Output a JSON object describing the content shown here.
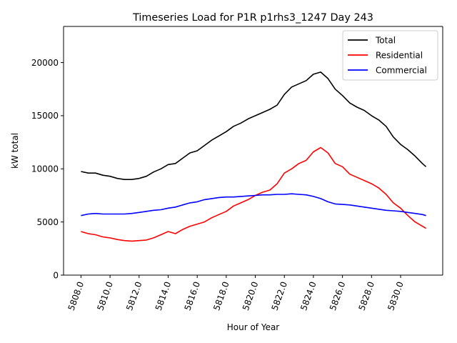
{
  "chart_data": {
    "type": "line",
    "title": "Timeseries Load for P1R p1rhs3_1247  Day 243",
    "xlabel": "Hour of Year",
    "ylabel": "kW total",
    "xlim": [
      5806.8,
      5832.9
    ],
    "ylim": [
      0,
      23400
    ],
    "x_ticks": [
      5808,
      5810,
      5812,
      5814,
      5816,
      5818,
      5820,
      5822,
      5824,
      5826,
      5828,
      5830
    ],
    "x_tick_labels": [
      "5808.0",
      "5810.0",
      "5812.0",
      "5814.0",
      "5816.0",
      "5818.0",
      "5820.0",
      "5822.0",
      "5824.0",
      "5826.0",
      "5828.0",
      "5830.0"
    ],
    "y_ticks": [
      0,
      5000,
      10000,
      15000,
      20000
    ],
    "y_tick_labels": [
      "0",
      "5000",
      "10000",
      "15000",
      "20000"
    ],
    "legend_position": "top-right",
    "x": [
      5808,
      5808.5,
      5809,
      5809.5,
      5810,
      5810.5,
      5811,
      5811.5,
      5812,
      5812.5,
      5813,
      5813.5,
      5814,
      5814.5,
      5815,
      5815.5,
      5816,
      5816.5,
      5817,
      5817.5,
      5818,
      5818.5,
      5819,
      5819.5,
      5820,
      5820.5,
      5821,
      5821.5,
      5822,
      5822.5,
      5823,
      5823.5,
      5824,
      5824.5,
      5825,
      5825.5,
      5826,
      5826.5,
      5827,
      5827.5,
      5828,
      5828.5,
      5829,
      5829.5,
      5830,
      5830.5,
      5831,
      5831.5,
      5831.75
    ],
    "series": [
      {
        "name": "Total",
        "color": "#000000",
        "values": [
          9750,
          9600,
          9600,
          9400,
          9300,
          9100,
          9000,
          9000,
          9100,
          9300,
          9700,
          10000,
          10400,
          10500,
          11000,
          11500,
          11700,
          12200,
          12700,
          13100,
          13500,
          14000,
          14300,
          14700,
          15000,
          15300,
          15600,
          16000,
          17000,
          17700,
          18000,
          18300,
          18900,
          19100,
          18500,
          17500,
          16900,
          16200,
          15800,
          15500,
          15000,
          14600,
          14000,
          13000,
          12300,
          11800,
          11200,
          10500,
          10200
        ]
      },
      {
        "name": "Residential",
        "color": "#ff0000",
        "values": [
          4100,
          3900,
          3800,
          3600,
          3500,
          3350,
          3250,
          3200,
          3250,
          3300,
          3500,
          3800,
          4100,
          3900,
          4300,
          4600,
          4800,
          5000,
          5400,
          5700,
          6000,
          6500,
          6800,
          7100,
          7500,
          7800,
          8000,
          8600,
          9600,
          10000,
          10500,
          10800,
          11600,
          12000,
          11500,
          10500,
          10200,
          9500,
          9200,
          8900,
          8600,
          8200,
          7600,
          6800,
          6300,
          5600,
          5000,
          4600,
          4400
        ]
      },
      {
        "name": "Commercial",
        "color": "#0000ff",
        "values": [
          5600,
          5750,
          5800,
          5750,
          5750,
          5750,
          5750,
          5800,
          5900,
          6000,
          6100,
          6150,
          6300,
          6400,
          6600,
          6800,
          6900,
          7100,
          7200,
          7300,
          7350,
          7350,
          7400,
          7450,
          7500,
          7550,
          7550,
          7600,
          7600,
          7650,
          7600,
          7550,
          7400,
          7200,
          6900,
          6700,
          6650,
          6600,
          6500,
          6400,
          6300,
          6200,
          6100,
          6050,
          6000,
          5900,
          5800,
          5700,
          5600
        ]
      }
    ]
  }
}
